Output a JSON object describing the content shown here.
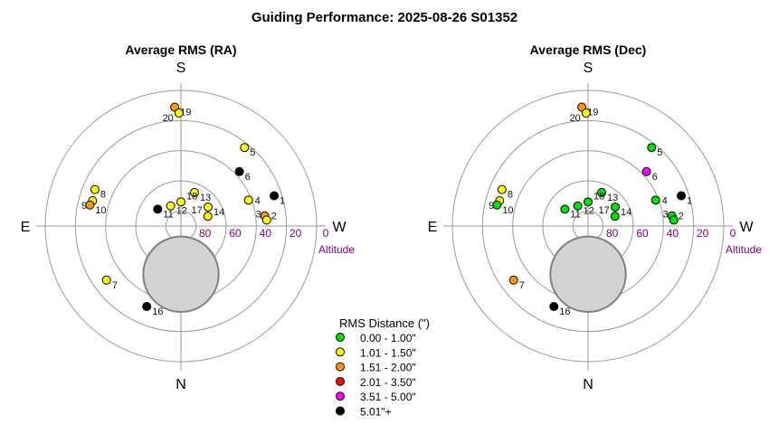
{
  "title": "Guiding Performance: 2025-08-26 S01352",
  "legend": {
    "title": "RMS Distance (\")",
    "items": [
      {
        "label": "0.00 - 1.00\"",
        "color": "#00e000"
      },
      {
        "label": "1.01 - 1.50\"",
        "color": "#ffff00"
      },
      {
        "label": "1.51 - 2.00\"",
        "color": "#ff9900"
      },
      {
        "label": "2.01 - 3.50\"",
        "color": "#ff0000"
      },
      {
        "label": "3.51 - 5.00\"",
        "color": "#ff00ff"
      },
      {
        "label": "5.01\"+",
        "color": "#000000"
      }
    ]
  },
  "chart_data": [
    {
      "type": "scatter",
      "projection": "polar-altaz",
      "title": "Average RMS (RA)",
      "directions": {
        "top": "S",
        "bottom": "N",
        "left": "E",
        "right": "W"
      },
      "radial_label": "Altitude",
      "radial_ticks": [
        80,
        60,
        40,
        20,
        0
      ],
      "moon": {
        "alt": 58,
        "az": 0,
        "radius_deg": 25
      },
      "points": [
        {
          "id": "1",
          "alt": 25,
          "az": 252,
          "cls": 5
        },
        {
          "id": "2",
          "alt": 34,
          "az": 263,
          "cls": 2
        },
        {
          "id": "3",
          "alt": 33,
          "az": 266,
          "cls": 1
        },
        {
          "id": "4",
          "alt": 42,
          "az": 249,
          "cls": 1
        },
        {
          "id": "5",
          "alt": 23,
          "az": 219,
          "cls": 1
        },
        {
          "id": "6",
          "alt": 37,
          "az": 227,
          "cls": 5
        },
        {
          "id": "7",
          "alt": 29,
          "az": 54,
          "cls": 1
        },
        {
          "id": "8",
          "alt": 28,
          "az": 113,
          "cls": 1
        },
        {
          "id": "9",
          "alt": 29,
          "az": 106,
          "cls": 1
        },
        {
          "id": "10",
          "alt": 28,
          "az": 103,
          "cls": 2
        },
        {
          "id": "11",
          "alt": 71,
          "az": 126,
          "cls": 5
        },
        {
          "id": "12",
          "alt": 75,
          "az": 153,
          "cls": 1
        },
        {
          "id": "13",
          "alt": 66,
          "az": 202,
          "cls": 1
        },
        {
          "id": "14",
          "alt": 68,
          "az": 235,
          "cls": 1
        },
        {
          "id": "16",
          "alt": 32,
          "az": 23,
          "cls": 5
        },
        {
          "id": "17",
          "alt": 71,
          "az": 250,
          "cls": 1
        },
        {
          "id": "18",
          "alt": 74,
          "az": 180,
          "cls": 1
        },
        {
          "id": "19",
          "alt": 11,
          "az": 177,
          "cls": 2
        },
        {
          "id": "20",
          "alt": 15,
          "az": 179,
          "cls": 1
        }
      ]
    },
    {
      "type": "scatter",
      "projection": "polar-altaz",
      "title": "Average RMS (Dec)",
      "directions": {
        "top": "S",
        "bottom": "N",
        "left": "E",
        "right": "W"
      },
      "radial_label": "Altitude",
      "radial_ticks": [
        80,
        60,
        40,
        20,
        0
      ],
      "moon": {
        "alt": 58,
        "az": 0,
        "radius_deg": 25
      },
      "points": [
        {
          "id": "1",
          "alt": 25,
          "az": 252,
          "cls": 5
        },
        {
          "id": "2",
          "alt": 34,
          "az": 263,
          "cls": 0
        },
        {
          "id": "3",
          "alt": 33,
          "az": 266,
          "cls": 0
        },
        {
          "id": "4",
          "alt": 42,
          "az": 249,
          "cls": 0
        },
        {
          "id": "5",
          "alt": 23,
          "az": 219,
          "cls": 0
        },
        {
          "id": "6",
          "alt": 37,
          "az": 227,
          "cls": 4
        },
        {
          "id": "7",
          "alt": 29,
          "az": 54,
          "cls": 2
        },
        {
          "id": "8",
          "alt": 28,
          "az": 113,
          "cls": 1
        },
        {
          "id": "9",
          "alt": 29,
          "az": 106,
          "cls": 1
        },
        {
          "id": "10",
          "alt": 28,
          "az": 103,
          "cls": 0
        },
        {
          "id": "11",
          "alt": 71,
          "az": 126,
          "cls": 0
        },
        {
          "id": "12",
          "alt": 75,
          "az": 153,
          "cls": 0
        },
        {
          "id": "13",
          "alt": 66,
          "az": 202,
          "cls": 0
        },
        {
          "id": "14",
          "alt": 68,
          "az": 235,
          "cls": 0
        },
        {
          "id": "16",
          "alt": 32,
          "az": 23,
          "cls": 5
        },
        {
          "id": "17",
          "alt": 71,
          "az": 250,
          "cls": 0
        },
        {
          "id": "18",
          "alt": 74,
          "az": 180,
          "cls": 0
        },
        {
          "id": "19",
          "alt": 11,
          "az": 177,
          "cls": 2
        },
        {
          "id": "20",
          "alt": 15,
          "az": 179,
          "cls": 1
        }
      ]
    }
  ]
}
